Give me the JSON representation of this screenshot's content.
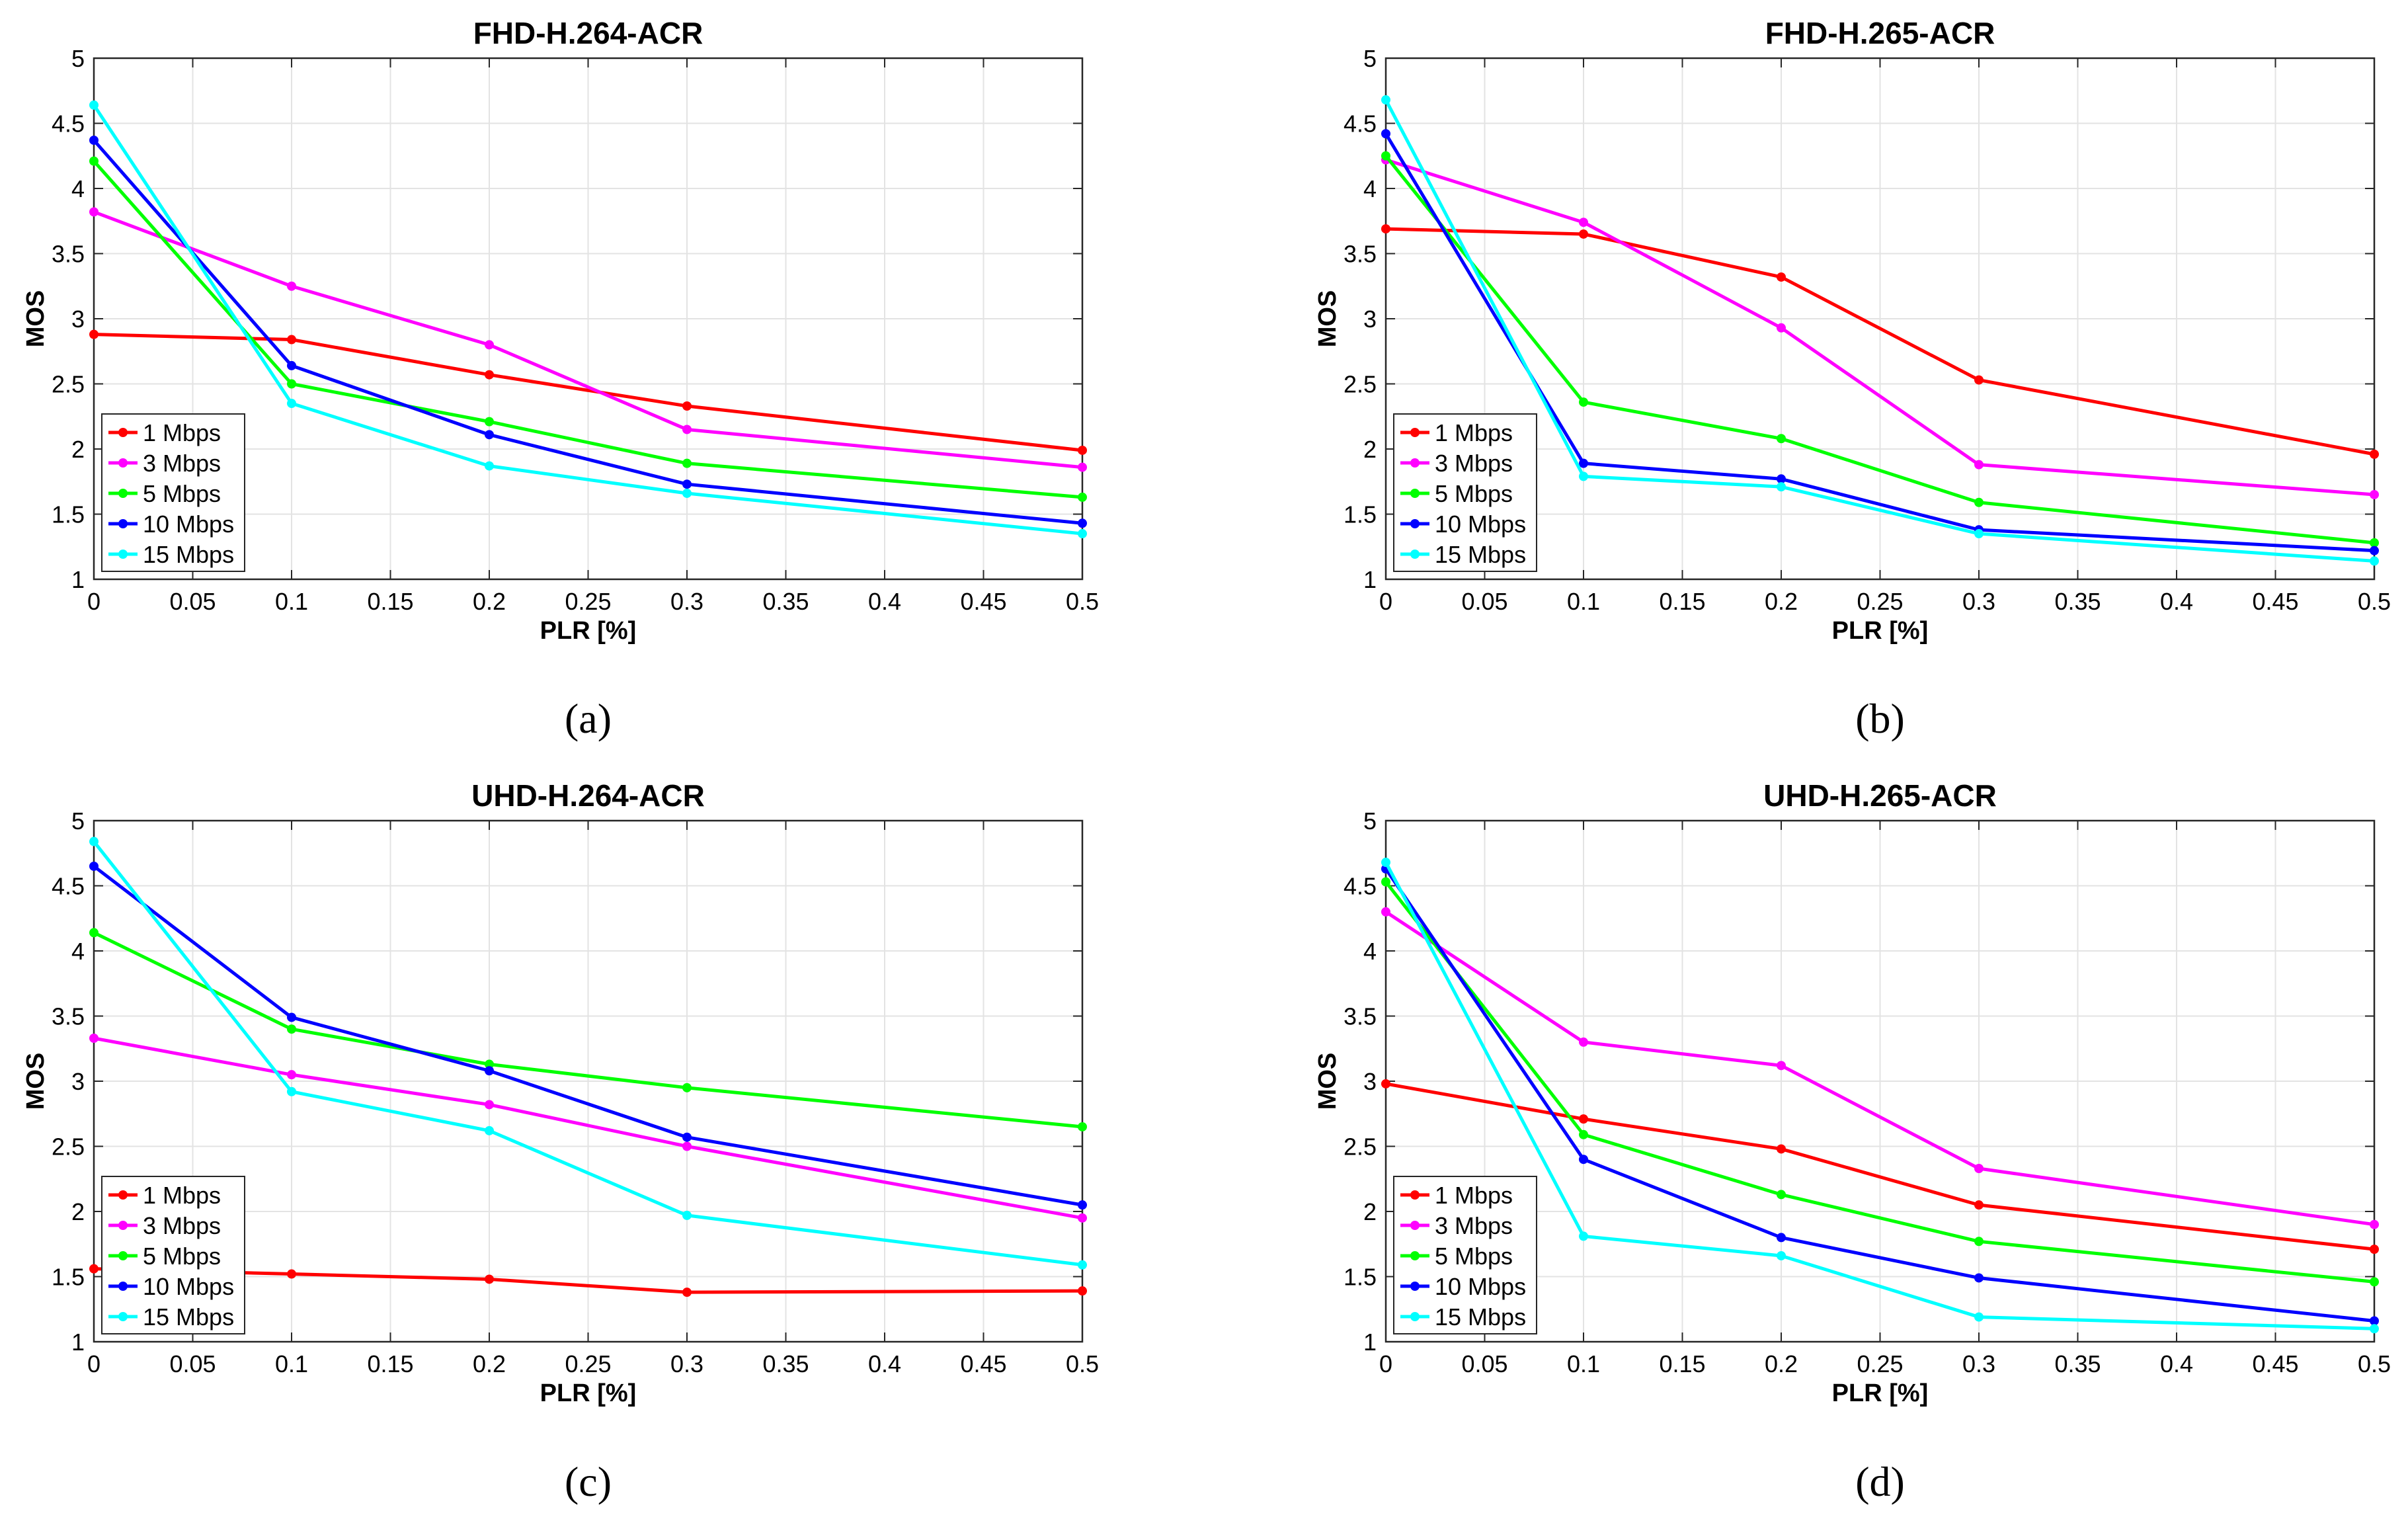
{
  "chart_data": [
    {
      "type": "line",
      "title": "FHD-H.264-ACR",
      "caption": "(a)",
      "xlabel": "PLR [%]",
      "ylabel": "MOS",
      "xlim": [
        0,
        0.5
      ],
      "ylim": [
        1,
        5
      ],
      "xticks": [
        "0",
        "0.05",
        "0.1",
        "0.15",
        "0.2",
        "0.25",
        "0.3",
        "0.35",
        "0.4",
        "0.45",
        "0.5"
      ],
      "yticks": [
        "1",
        "1.5",
        "2",
        "2.5",
        "3",
        "3.5",
        "4",
        "4.5",
        "5"
      ],
      "grid": true,
      "legend_position": "bottom-left",
      "x": [
        0,
        0.1,
        0.2,
        0.3,
        0.5
      ],
      "series": [
        {
          "name": "1 Mbps",
          "color": "#ff0000",
          "values": [
            2.88,
            2.84,
            2.57,
            2.33,
            1.99
          ]
        },
        {
          "name": "3 Mbps",
          "color": "#ff00ff",
          "values": [
            3.82,
            3.25,
            2.8,
            2.15,
            1.86
          ]
        },
        {
          "name": "5 Mbps",
          "color": "#00ff00",
          "values": [
            4.21,
            2.5,
            2.21,
            1.89,
            1.63
          ]
        },
        {
          "name": "10 Mbps",
          "color": "#0000ff",
          "values": [
            4.37,
            2.64,
            2.11,
            1.73,
            1.43
          ]
        },
        {
          "name": "15 Mbps",
          "color": "#00ffff",
          "values": [
            4.64,
            2.35,
            1.87,
            1.66,
            1.35
          ]
        }
      ]
    },
    {
      "type": "line",
      "title": "FHD-H.265-ACR",
      "caption": "(b)",
      "xlabel": "PLR [%]",
      "ylabel": "MOS",
      "xlim": [
        0,
        0.5
      ],
      "ylim": [
        1,
        5
      ],
      "xticks": [
        "0",
        "0.05",
        "0.1",
        "0.15",
        "0.2",
        "0.25",
        "0.3",
        "0.35",
        "0.4",
        "0.45",
        "0.5"
      ],
      "yticks": [
        "1",
        "1.5",
        "2",
        "2.5",
        "3",
        "3.5",
        "4",
        "4.5",
        "5"
      ],
      "grid": true,
      "legend_position": "bottom-left",
      "x": [
        0,
        0.1,
        0.2,
        0.3,
        0.5
      ],
      "series": [
        {
          "name": "1 Mbps",
          "color": "#ff0000",
          "values": [
            3.69,
            3.65,
            3.32,
            2.53,
            1.96
          ]
        },
        {
          "name": "3 Mbps",
          "color": "#ff00ff",
          "values": [
            4.22,
            3.74,
            2.93,
            1.88,
            1.65
          ]
        },
        {
          "name": "5 Mbps",
          "color": "#00ff00",
          "values": [
            4.25,
            2.36,
            2.08,
            1.59,
            1.28
          ]
        },
        {
          "name": "10 Mbps",
          "color": "#0000ff",
          "values": [
            4.42,
            1.89,
            1.77,
            1.38,
            1.22
          ]
        },
        {
          "name": "15 Mbps",
          "color": "#00ffff",
          "values": [
            4.68,
            1.79,
            1.71,
            1.35,
            1.14
          ]
        }
      ]
    },
    {
      "type": "line",
      "title": "UHD-H.264-ACR",
      "caption": "(c)",
      "xlabel": "PLR [%]",
      "ylabel": "MOS",
      "xlim": [
        0,
        0.5
      ],
      "ylim": [
        1,
        5
      ],
      "xticks": [
        "0",
        "0.05",
        "0.1",
        "0.15",
        "0.2",
        "0.25",
        "0.3",
        "0.35",
        "0.4",
        "0.45",
        "0.5"
      ],
      "yticks": [
        "1",
        "1.5",
        "2",
        "2.5",
        "3",
        "3.5",
        "4",
        "4.5",
        "5"
      ],
      "grid": true,
      "legend_position": "bottom-left",
      "x": [
        0,
        0.1,
        0.2,
        0.3,
        0.5
      ],
      "series": [
        {
          "name": "1 Mbps",
          "color": "#ff0000",
          "values": [
            1.56,
            1.52,
            1.48,
            1.38,
            1.39
          ]
        },
        {
          "name": "3 Mbps",
          "color": "#ff00ff",
          "values": [
            3.33,
            3.05,
            2.82,
            2.5,
            1.95
          ]
        },
        {
          "name": "5 Mbps",
          "color": "#00ff00",
          "values": [
            4.14,
            3.4,
            3.13,
            2.95,
            2.65
          ]
        },
        {
          "name": "10 Mbps",
          "color": "#0000ff",
          "values": [
            4.65,
            3.49,
            3.08,
            2.57,
            2.05
          ]
        },
        {
          "name": "15 Mbps",
          "color": "#00ffff",
          "values": [
            4.84,
            2.92,
            2.62,
            1.97,
            1.59
          ]
        }
      ]
    },
    {
      "type": "line",
      "title": "UHD-H.265-ACR",
      "caption": "(d)",
      "xlabel": "PLR [%]",
      "ylabel": "MOS",
      "xlim": [
        0,
        0.5
      ],
      "ylim": [
        1,
        5
      ],
      "xticks": [
        "0",
        "0.05",
        "0.1",
        "0.15",
        "0.2",
        "0.25",
        "0.3",
        "0.35",
        "0.4",
        "0.45",
        "0.5"
      ],
      "yticks": [
        "1",
        "1.5",
        "2",
        "2.5",
        "3",
        "3.5",
        "4",
        "4.5",
        "5"
      ],
      "grid": true,
      "legend_position": "bottom-left",
      "x": [
        0,
        0.1,
        0.2,
        0.3,
        0.5
      ],
      "series": [
        {
          "name": "1 Mbps",
          "color": "#ff0000",
          "values": [
            2.98,
            2.71,
            2.48,
            2.05,
            1.71
          ]
        },
        {
          "name": "3 Mbps",
          "color": "#ff00ff",
          "values": [
            4.3,
            3.3,
            3.12,
            2.33,
            1.9
          ]
        },
        {
          "name": "5 Mbps",
          "color": "#00ff00",
          "values": [
            4.53,
            2.59,
            2.13,
            1.77,
            1.46
          ]
        },
        {
          "name": "10 Mbps",
          "color": "#0000ff",
          "values": [
            4.63,
            2.4,
            1.8,
            1.49,
            1.16
          ]
        },
        {
          "name": "15 Mbps",
          "color": "#00ffff",
          "values": [
            4.68,
            1.81,
            1.66,
            1.19,
            1.1
          ]
        }
      ]
    }
  ]
}
